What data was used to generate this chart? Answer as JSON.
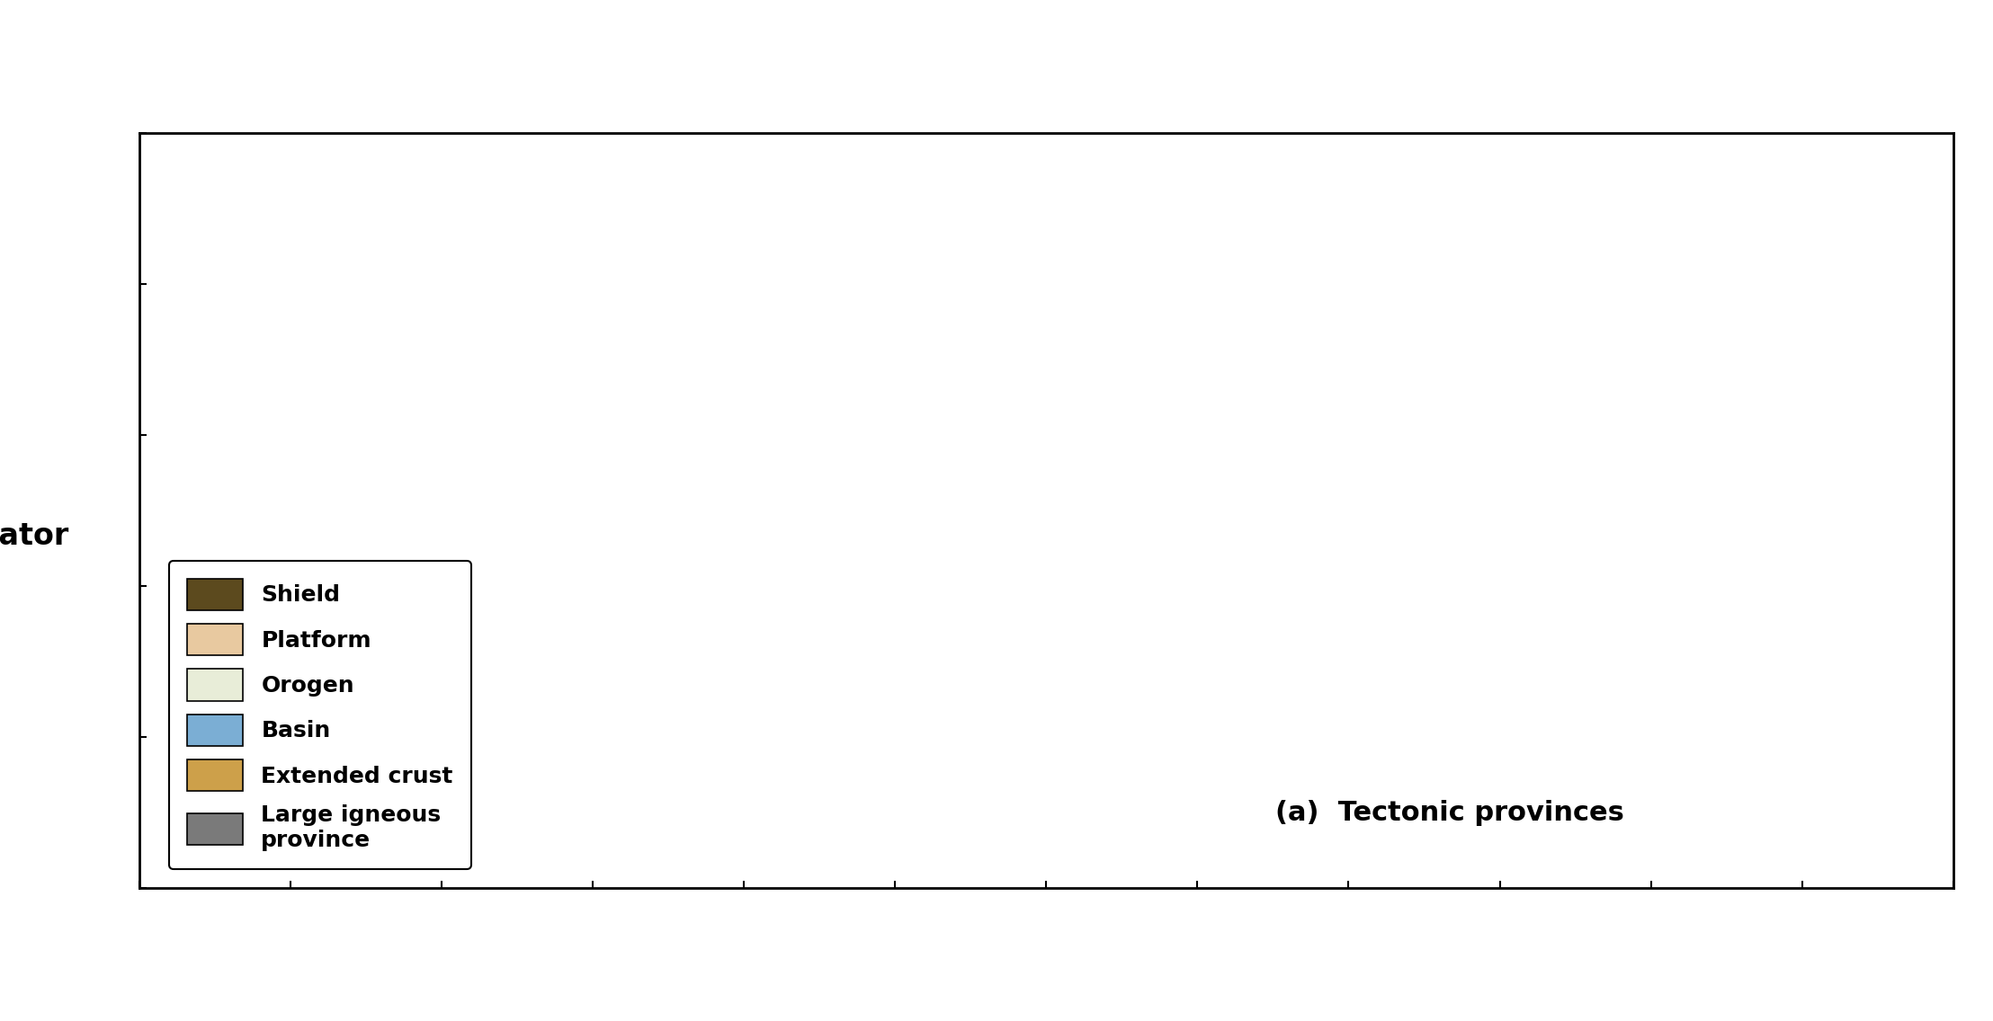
{
  "title": "(a)  Tectonic provinces",
  "equator_label": "Equator",
  "legend_entries": [
    {
      "label": "Shield",
      "color": "#5C4A1E"
    },
    {
      "label": "Platform",
      "color": "#E8C9A0"
    },
    {
      "label": "Orogen",
      "color": "#E8EDD8"
    },
    {
      "label": "Basin",
      "color": "#7BAED4"
    },
    {
      "label": "Extended crust",
      "color": "#CDA04A"
    },
    {
      "label": "Large igneous\nprovince",
      "color": "#7A7A7A"
    }
  ],
  "map_background": "#FFFFFF",
  "ocean_color": "#FFFFFF",
  "border_color": "#000000",
  "frame_color": "#000000",
  "title_fontsize": 22,
  "label_fontsize": 20,
  "legend_fontsize": 18,
  "equator_fontsize": 24,
  "shield_color": "#5C4A1E",
  "platform_color": "#E8C9A0",
  "orogen_color": "#E8EDD8",
  "basin_color": "#7BAED4",
  "extended_crust_color": "#CDA04A",
  "large_igneous_color": "#7A7A7A"
}
